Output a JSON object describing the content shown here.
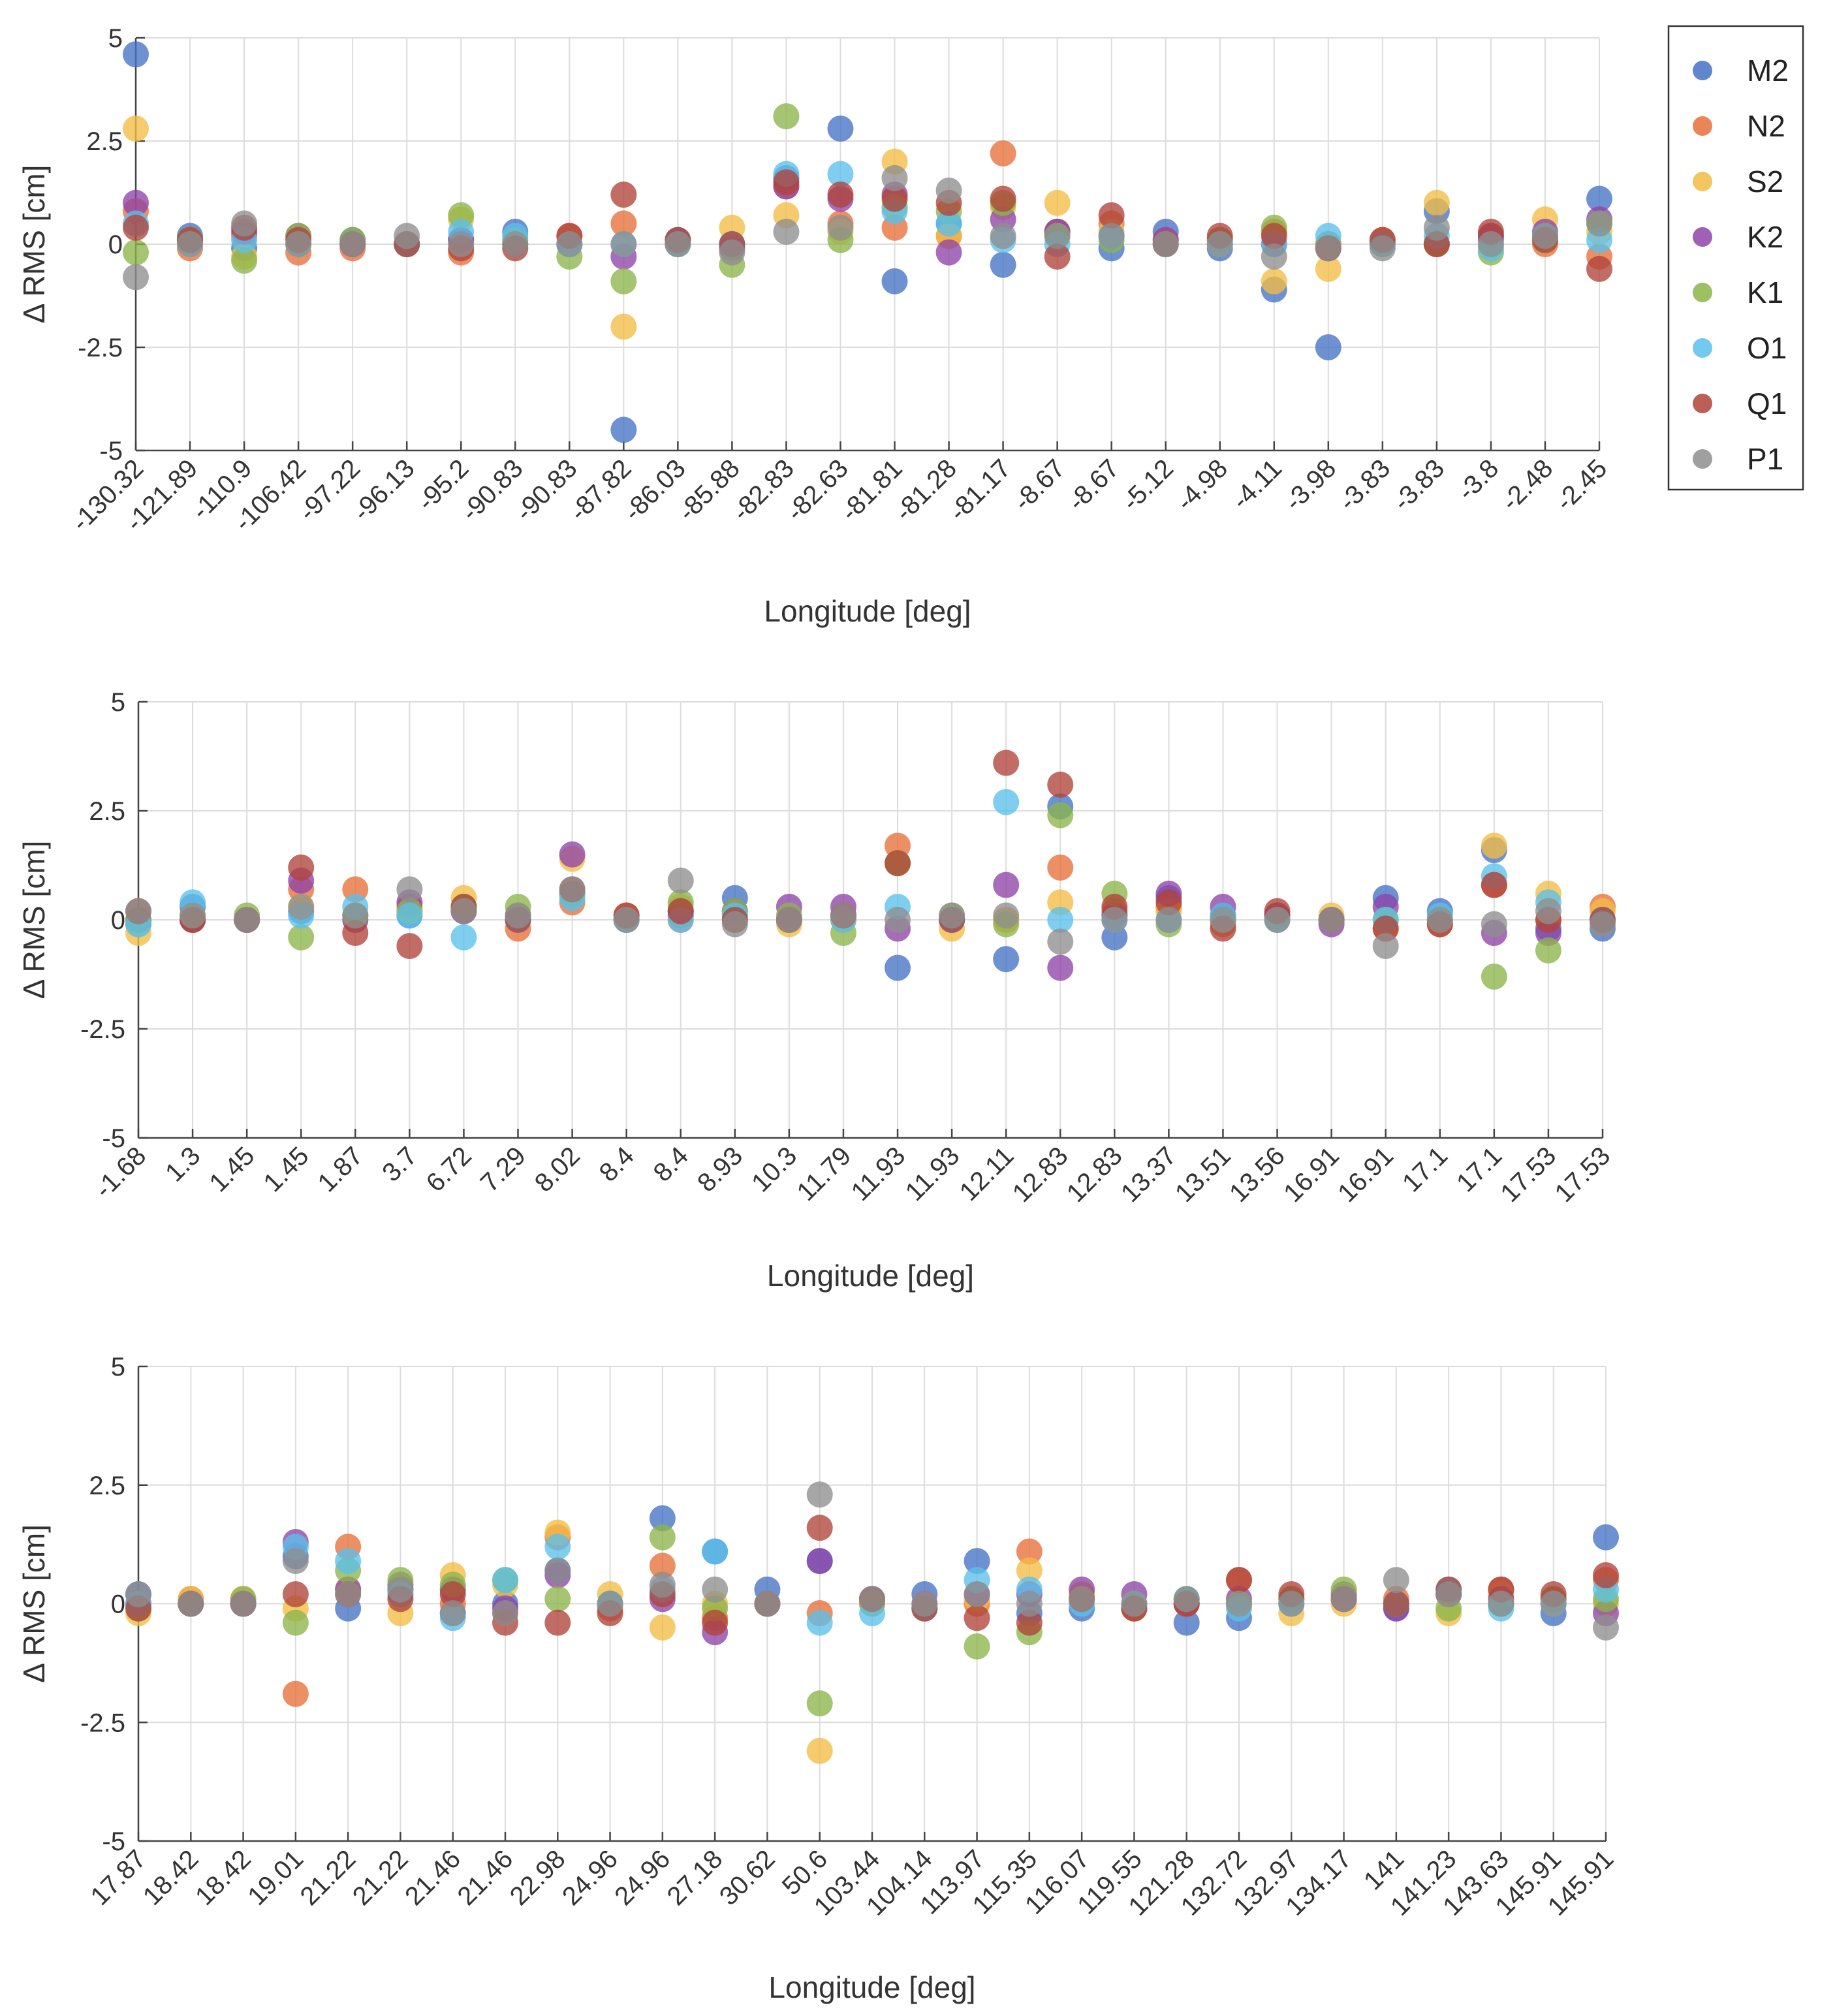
{
  "chart_data": [
    {
      "type": "scatter",
      "xlabel": "Longitude [deg]",
      "ylabel": "Δ RMS [cm]",
      "ylim": [
        -5,
        5
      ],
      "yticks": [
        "-5",
        "-2.5",
        "0",
        "2.5",
        "5"
      ],
      "grid": true,
      "categories": [
        "-130.32",
        "-121.89",
        "-110.9",
        "-106.42",
        "-97.22",
        "-96.13",
        "-95.2",
        "-90.83",
        "-90.83",
        "-87.82",
        "-86.03",
        "-85.88",
        "-82.83",
        "-82.63",
        "-81.81",
        "-81.28",
        "-81.17",
        "-8.67",
        "-8.67",
        "-5.12",
        "-4.98",
        "-4.11",
        "-3.98",
        "-3.83",
        "-3.83",
        "-3.8",
        "-2.48",
        "-2.45"
      ],
      "series": [
        {
          "name": "M2",
          "values": [
            4.6,
            0.2,
            -0.1,
            0,
            0.1,
            0,
            0.1,
            0.3,
            0,
            -4.5,
            0.1,
            0,
            1.6,
            2.8,
            -0.9,
            0.5,
            -0.5,
            0.3,
            -0.1,
            0.3,
            -0.1,
            -1.1,
            -2.5,
            0,
            0.8,
            0.1,
            0.2,
            1.1
          ]
        },
        {
          "name": "N2",
          "values": [
            0.8,
            -0.1,
            0.2,
            -0.2,
            -0.1,
            0,
            -0.2,
            0,
            0.2,
            0.5,
            0,
            0,
            1.4,
            0.5,
            0.4,
            0.2,
            2.2,
            0.3,
            0.5,
            0.1,
            0,
            0.3,
            0,
            0.1,
            0,
            0.2,
            0,
            -0.3
          ]
        },
        {
          "name": "S2",
          "values": [
            2.8,
            0,
            -0.3,
            0,
            0,
            0,
            0.6,
            0,
            0,
            -2,
            0,
            0.4,
            0.7,
            0.3,
            2,
            0.2,
            0.9,
            1,
            0.3,
            0,
            0,
            -0.9,
            -0.6,
            0,
            1,
            0,
            0.6,
            0.3
          ]
        },
        {
          "name": "K2",
          "values": [
            1,
            0.1,
            0.3,
            0.2,
            0,
            0,
            0.1,
            0,
            0,
            -0.3,
            0,
            -0.1,
            1.4,
            1.1,
            1.2,
            -0.2,
            0.6,
            0.3,
            0.2,
            0.1,
            0.1,
            0,
            -0.1,
            0,
            0,
            0.2,
            0.3,
            0.6
          ]
        },
        {
          "name": "K1",
          "values": [
            -0.2,
            0.1,
            -0.4,
            0.2,
            0.1,
            0,
            0.7,
            0.1,
            -0.3,
            -0.9,
            0,
            -0.5,
            3.1,
            0.1,
            0.9,
            0.8,
            1,
            0.2,
            0.1,
            0,
            0.1,
            0.4,
            0,
            0,
            0,
            -0.2,
            0.1,
            0.5
          ]
        },
        {
          "name": "O1",
          "values": [
            0.5,
            0,
            0.1,
            0,
            0,
            0,
            0.3,
            0.2,
            0,
            0,
            0,
            0,
            1.7,
            1.7,
            0.8,
            0.5,
            0.1,
            0,
            0.2,
            0,
            0,
            0,
            0.2,
            0,
            0.2,
            -0.1,
            0.2,
            0.1
          ]
        },
        {
          "name": "Q1",
          "values": [
            0.4,
            0.1,
            0.4,
            0.1,
            0,
            0,
            -0.1,
            -0.1,
            0.2,
            1.2,
            0.1,
            0,
            1.5,
            1.2,
            1.1,
            1,
            1.1,
            -0.3,
            0.7,
            0,
            0.2,
            0.2,
            -0.1,
            0.1,
            0,
            0.3,
            0.1,
            -0.6
          ]
        },
        {
          "name": "P1",
          "values": [
            -0.8,
            0,
            0.5,
            0,
            0,
            0.2,
            0,
            0,
            0,
            0,
            0,
            -0.2,
            0.3,
            0.4,
            1.6,
            1.3,
            0.2,
            0.2,
            0.2,
            0,
            0,
            -0.3,
            -0.1,
            -0.1,
            0.4,
            0,
            0.2,
            0.5
          ]
        }
      ]
    },
    {
      "type": "scatter",
      "xlabel": "Longitude [deg]",
      "ylabel": "Δ RMS [cm]",
      "ylim": [
        -5,
        5
      ],
      "yticks": [
        "-5",
        "-2.5",
        "0",
        "2.5",
        "5"
      ],
      "grid": true,
      "categories": [
        "-1.68",
        "1.3",
        "1.45",
        "1.45",
        "1.87",
        "3.7",
        "6.72",
        "7.29",
        "8.02",
        "8.4",
        "8.4",
        "8.93",
        "10.3",
        "11.79",
        "11.93",
        "11.93",
        "12.11",
        "12.83",
        "12.83",
        "13.37",
        "13.51",
        "13.56",
        "16.91",
        "16.91",
        "17.1",
        "17.1",
        "17.53",
        "17.53"
      ],
      "series": [
        {
          "name": "M2",
          "values": [
            -0.1,
            0.3,
            0,
            0.2,
            0.1,
            0.1,
            0.2,
            0,
            0.6,
            0,
            0.1,
            0.5,
            0,
            0.1,
            -1.1,
            0,
            -0.9,
            2.6,
            -0.4,
            0.5,
            0.1,
            0.1,
            0,
            0.5,
            0.2,
            1.6,
            -0.2,
            -0.2
          ]
        },
        {
          "name": "N2",
          "values": [
            0,
            0,
            0,
            0.7,
            0.7,
            0.3,
            0.2,
            -0.2,
            0.4,
            0.1,
            0,
            0,
            0,
            0,
            1.7,
            0,
            0,
            1.2,
            0.2,
            0.3,
            -0.1,
            0.1,
            0,
            -0.2,
            -0.1,
            0.8,
            0,
            0.3
          ]
        },
        {
          "name": "S2",
          "values": [
            -0.3,
            0,
            0,
            0.3,
            0,
            0.2,
            0.5,
            0.1,
            1.4,
            0,
            0.3,
            0.1,
            -0.1,
            0,
            1.3,
            -0.2,
            0,
            0.4,
            0.1,
            0.2,
            0,
            0,
            0.1,
            0,
            0,
            1.7,
            0.6,
            0.2
          ]
        },
        {
          "name": "K2",
          "values": [
            0,
            0,
            0,
            0.9,
            0,
            0.4,
            0.2,
            0.1,
            1.5,
            0,
            0.2,
            0.2,
            0.3,
            0.3,
            -0.2,
            0,
            0.8,
            -1.1,
            0.1,
            0.6,
            0.3,
            0.1,
            -0.1,
            0.3,
            0,
            -0.3,
            -0.3,
            0
          ]
        },
        {
          "name": "K1",
          "values": [
            0,
            0.1,
            0.1,
            -0.4,
            0.1,
            0.2,
            0.3,
            0.3,
            0.6,
            0,
            0.4,
            0.2,
            0.1,
            -0.3,
            1.3,
            0.1,
            -0.1,
            2.4,
            0.6,
            -0.1,
            0,
            0,
            0,
            0,
            0,
            -1.3,
            -0.7,
            0
          ]
        },
        {
          "name": "O1",
          "values": [
            -0.1,
            0.4,
            0,
            0.1,
            0.3,
            0.1,
            -0.4,
            0,
            0.5,
            0,
            0,
            0.1,
            0,
            0,
            0.3,
            0,
            2.7,
            0,
            0,
            0,
            0.1,
            0,
            0,
            0,
            0.1,
            1,
            0.4,
            0
          ]
        },
        {
          "name": "Q1",
          "values": [
            0.2,
            0,
            0,
            1.2,
            -0.3,
            -0.6,
            0.3,
            0,
            0.7,
            0.1,
            0.2,
            0,
            0,
            0.1,
            1.3,
            0,
            3.6,
            3.1,
            0.3,
            0.4,
            -0.2,
            0.2,
            0,
            -0.2,
            -0.1,
            0.8,
            0,
            0
          ]
        },
        {
          "name": "P1",
          "values": [
            0.2,
            0.1,
            0,
            0.3,
            0.1,
            0.7,
            0.2,
            0.1,
            0.7,
            0,
            0.9,
            -0.1,
            0,
            0.1,
            0,
            0.1,
            0.1,
            -0.5,
            0,
            0,
            0,
            0,
            0,
            -0.6,
            0,
            -0.1,
            0.2,
            -0.1
          ]
        }
      ]
    },
    {
      "type": "scatter",
      "xlabel": "Longitude [deg]",
      "ylabel": "Δ RMS [cm]",
      "ylim": [
        -5,
        5
      ],
      "yticks": [
        "-5",
        "-2.5",
        "0",
        "2.5",
        "5"
      ],
      "grid": true,
      "categories": [
        "17.87",
        "18.42",
        "18.42",
        "19.01",
        "21.22",
        "21.22",
        "21.46",
        "21.46",
        "22.98",
        "24.96",
        "24.96",
        "27.18",
        "30.62",
        "50.6",
        "103.44",
        "104.14",
        "113.97",
        "115.35",
        "116.07",
        "119.55",
        "121.28",
        "132.72",
        "132.97",
        "134.17",
        "141",
        "141.23",
        "143.63",
        "145.91",
        "145.91"
      ],
      "series": [
        {
          "name": "M2",
          "values": [
            0.2,
            0,
            0,
            1,
            -0.1,
            0.3,
            -0.2,
            0,
            0.7,
            0,
            1.8,
            1.1,
            0.3,
            0.9,
            0.1,
            0.2,
            0.9,
            -0.2,
            -0.1,
            -0.1,
            -0.4,
            -0.3,
            0,
            0.1,
            -0.1,
            0.2,
            0,
            -0.2,
            1.4
          ]
        },
        {
          "name": "N2",
          "values": [
            0,
            0.1,
            0,
            -1.9,
            1.2,
            0.2,
            0,
            -0.2,
            1.4,
            -0.1,
            0.8,
            -0.3,
            0,
            -0.2,
            0,
            -0.1,
            0,
            1.1,
            0.2,
            -0.1,
            0,
            0.5,
            0.1,
            0.1,
            0.1,
            0.2,
            0.3,
            0.1,
            0.5
          ]
        },
        {
          "name": "S2",
          "values": [
            -0.2,
            0.1,
            0.1,
            -0.1,
            0.3,
            -0.2,
            0.6,
            0.4,
            1.5,
            0.2,
            -0.5,
            0,
            0,
            -3.1,
            0,
            0,
            0.1,
            0.7,
            0.2,
            0,
            0,
            0,
            -0.2,
            0,
            0,
            -0.2,
            0.2,
            0,
            0
          ]
        },
        {
          "name": "K2",
          "values": [
            0,
            0,
            0,
            1.3,
            0.3,
            0.4,
            0.3,
            -0.1,
            0.6,
            0,
            0.1,
            -0.6,
            0,
            0.9,
            0.1,
            0,
            0.2,
            0.2,
            0.3,
            0.2,
            0,
            0.1,
            0.1,
            0.2,
            -0.1,
            0.2,
            0.1,
            0.1,
            -0.2
          ]
        },
        {
          "name": "K1",
          "values": [
            -0.1,
            0,
            0.1,
            -0.4,
            0.7,
            0.5,
            0.4,
            0.5,
            0.1,
            0,
            1.4,
            -0.1,
            0,
            -2.1,
            0,
            -0.1,
            -0.9,
            -0.6,
            0.1,
            0,
            0.1,
            0,
            0.1,
            0.3,
            0,
            -0.1,
            0,
            0.1,
            0.1
          ]
        },
        {
          "name": "O1",
          "values": [
            0,
            0,
            0,
            1.2,
            0.9,
            0.2,
            -0.3,
            0.5,
            1.2,
            0,
            0.3,
            1.1,
            0,
            -0.4,
            -0.2,
            -0.1,
            0.5,
            0.3,
            0,
            0,
            0.1,
            -0.1,
            0,
            0.1,
            0,
            0.3,
            -0.1,
            0,
            0.3
          ]
        },
        {
          "name": "Q1",
          "values": [
            -0.1,
            0,
            0,
            0.2,
            0.2,
            0.1,
            0.2,
            -0.4,
            -0.4,
            -0.2,
            0.2,
            -0.4,
            0,
            1.6,
            0.1,
            -0.1,
            -0.3,
            -0.4,
            0.1,
            -0.1,
            0,
            0.5,
            0.2,
            0.1,
            0,
            0.3,
            0.3,
            0.2,
            0.6
          ]
        },
        {
          "name": "P1",
          "values": [
            0.2,
            0,
            0,
            0.9,
            0.2,
            0.3,
            -0.2,
            -0.2,
            0.7,
            0,
            0.4,
            0.3,
            0,
            2.3,
            0.1,
            0,
            0.2,
            0,
            0.1,
            0,
            0.1,
            0,
            0,
            0.1,
            0.5,
            0.2,
            0,
            0,
            -0.5
          ]
        }
      ]
    }
  ],
  "legend": [
    {
      "label": "M2",
      "color": "#4472C4"
    },
    {
      "label": "N2",
      "color": "#E8703A"
    },
    {
      "label": "S2",
      "color": "#F2BC44"
    },
    {
      "label": "K2",
      "color": "#8E44A8"
    },
    {
      "label": "K1",
      "color": "#8CB54A"
    },
    {
      "label": "O1",
      "color": "#5BC0EB"
    },
    {
      "label": "Q1",
      "color": "#B0433A"
    },
    {
      "label": "P1",
      "color": "#8E8E8E"
    }
  ]
}
